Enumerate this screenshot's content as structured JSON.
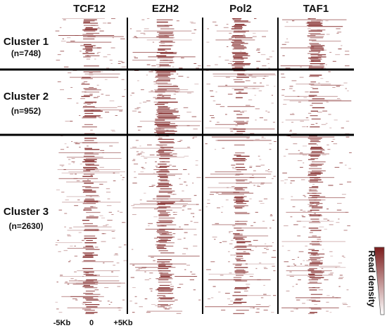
{
  "heatmap": {
    "columns": [
      {
        "name": "TCF12"
      },
      {
        "name": "EZH2"
      },
      {
        "name": "Pol2"
      },
      {
        "name": "TAF1"
      }
    ],
    "clusters": [
      {
        "name": "Cluster 1",
        "count_label": "(n=748)"
      },
      {
        "name": "Cluster 2",
        "count_label": "(n=952)"
      },
      {
        "name": "Cluster 3",
        "count_label": "(n=2630)"
      }
    ],
    "x_ticks": [
      "-5Kb",
      "0",
      "+5Kb"
    ],
    "legend": {
      "label": "Read density"
    },
    "colors": {
      "signal": "#7b1c1c",
      "background": "#ffffff",
      "divider": "#000000"
    }
  }
}
